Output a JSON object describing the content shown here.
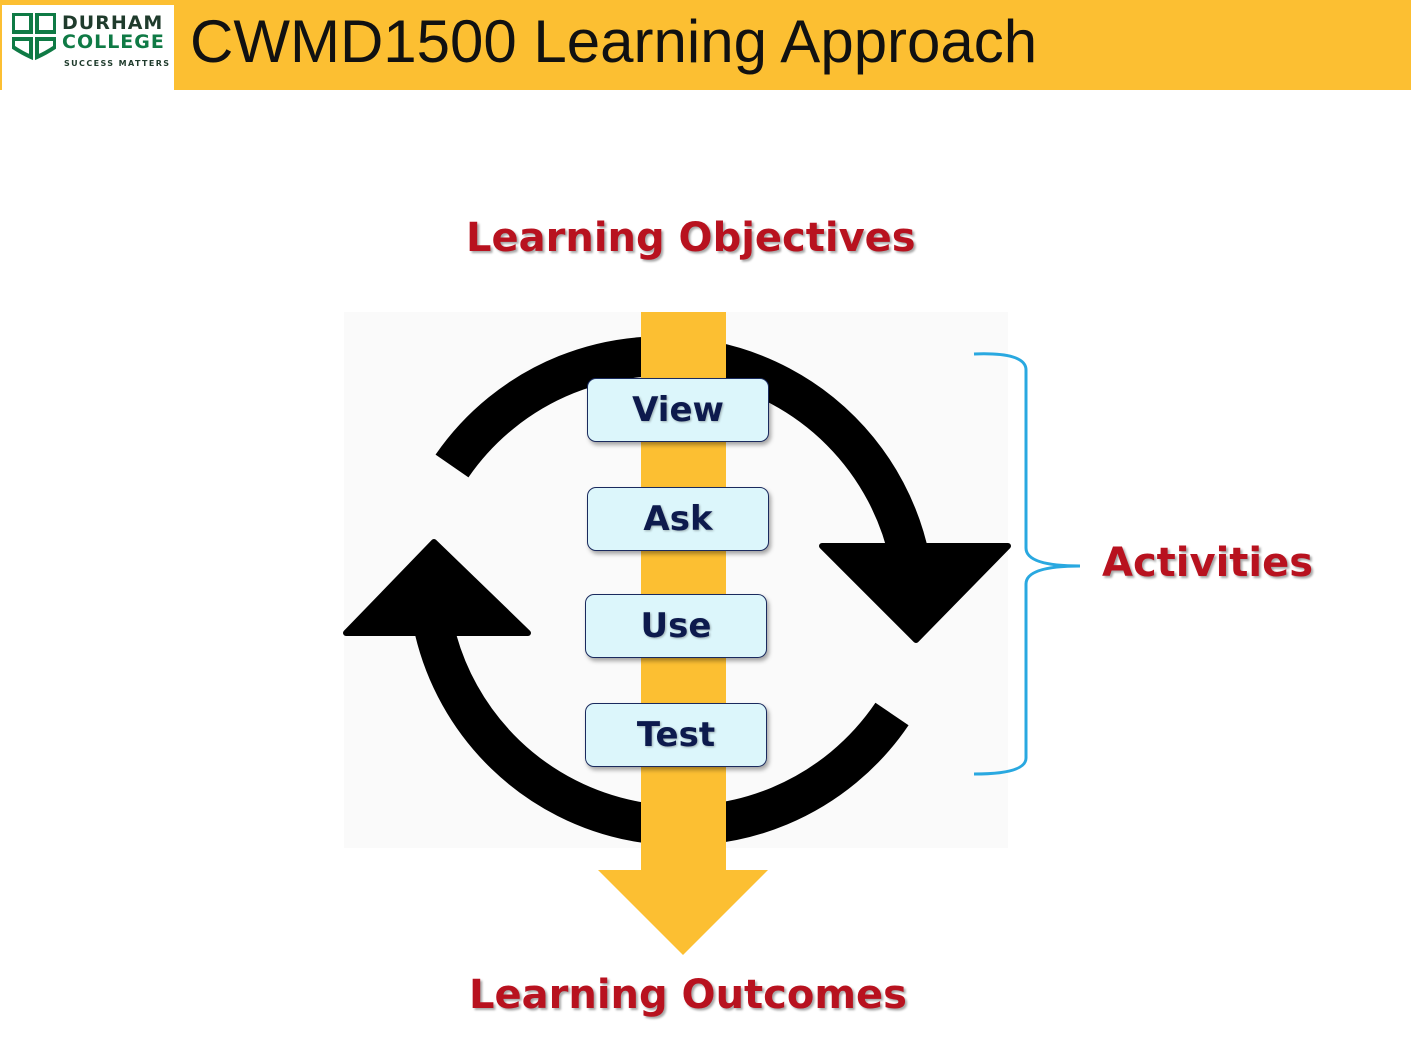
{
  "header": {
    "title": "CWMD1500 Learning Approach",
    "logo": {
      "line1": "DURHAM",
      "line2": "COLLEGE",
      "tagline": "SUCCESS MATTERS"
    }
  },
  "diagram": {
    "top_label": "Learning Objectives",
    "bottom_label": "Learning Outcomes",
    "bracket_label": "Activities",
    "activities": [
      "View",
      "Ask",
      "Use",
      "Test"
    ]
  },
  "colors": {
    "header_bg": "#fcbf32",
    "arrow_yellow": "#fcbf32",
    "label_red": "#b8121f",
    "box_fill": "#dcf6fb",
    "box_text": "#0d1a4d",
    "bracket_blue": "#29a8e0",
    "cycle_black": "#000000"
  }
}
